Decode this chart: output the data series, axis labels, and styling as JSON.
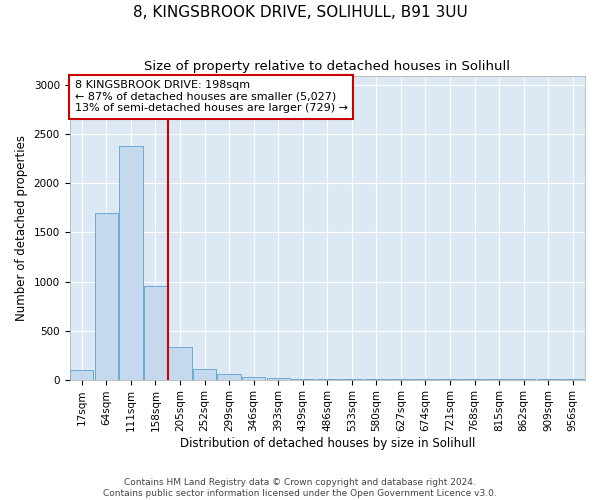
{
  "title": "8, KINGSBROOK DRIVE, SOLIHULL, B91 3UU",
  "subtitle": "Size of property relative to detached houses in Solihull",
  "xlabel": "Distribution of detached houses by size in Solihull",
  "ylabel": "Number of detached properties",
  "bar_labels": [
    "17sqm",
    "64sqm",
    "111sqm",
    "158sqm",
    "205sqm",
    "252sqm",
    "299sqm",
    "346sqm",
    "393sqm",
    "439sqm",
    "486sqm",
    "533sqm",
    "580sqm",
    "627sqm",
    "674sqm",
    "721sqm",
    "768sqm",
    "815sqm",
    "862sqm",
    "909sqm",
    "956sqm"
  ],
  "bar_values": [
    100,
    1700,
    2380,
    950,
    330,
    110,
    60,
    30,
    15,
    10,
    8,
    5,
    4,
    3,
    2,
    2,
    1,
    1,
    1,
    1,
    1
  ],
  "bar_color": "#c5d9ee",
  "bar_edge_color": "#6aaad4",
  "property_label": "8 KINGSBROOK DRIVE: 198sqm",
  "annotation_line1": "← 87% of detached houses are smaller (5,027)",
  "annotation_line2": "13% of semi-detached houses are larger (729) →",
  "vline_color": "#cc0000",
  "vline_x_index": 3.5,
  "annotation_box_color": "#ffffff",
  "annotation_box_edge": "#cc0000",
  "ylim": [
    0,
    3100
  ],
  "yticks": [
    0,
    500,
    1000,
    1500,
    2000,
    2500,
    3000
  ],
  "footer_line1": "Contains HM Land Registry data © Crown copyright and database right 2024.",
  "footer_line2": "Contains public sector information licensed under the Open Government Licence v3.0.",
  "title_fontsize": 11,
  "subtitle_fontsize": 9.5,
  "axis_label_fontsize": 8.5,
  "tick_fontsize": 7.5,
  "footer_fontsize": 6.5,
  "annotation_fontsize": 8
}
